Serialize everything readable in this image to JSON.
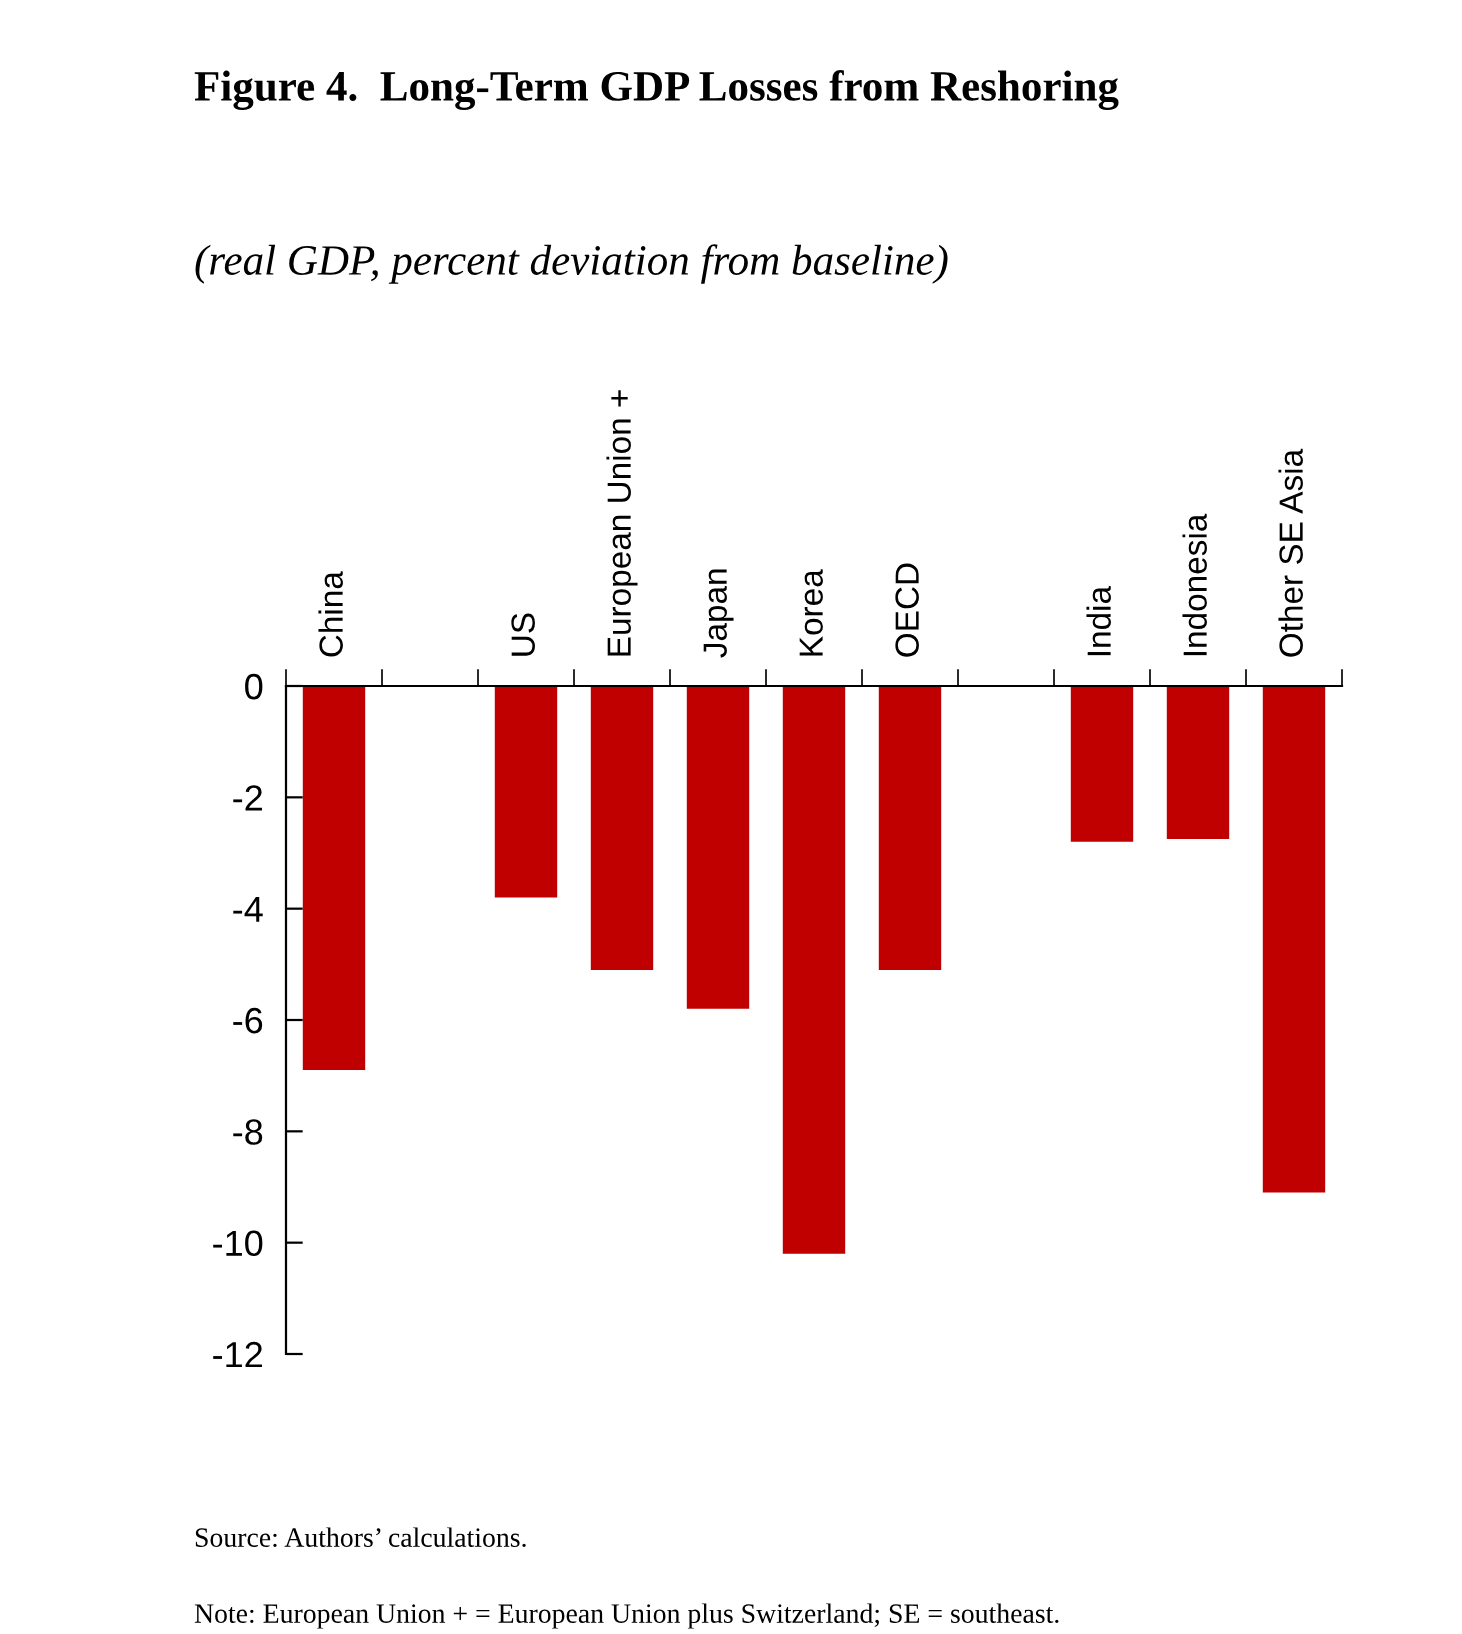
{
  "chart_data": {
    "type": "bar",
    "title": "Figure 4.  Long-Term GDP Losses from Reshoring",
    "subtitle": "(real GDP, percent deviation from baseline)",
    "categories": [
      "China",
      null,
      "US",
      "European Union +",
      "Japan",
      "Korea",
      "OECD",
      null,
      "India",
      "Indonesia",
      "Other SE Asia"
    ],
    "values": [
      -6.9,
      null,
      -3.8,
      -5.1,
      -5.8,
      -10.2,
      -5.1,
      null,
      -2.8,
      -2.75,
      -9.1
    ],
    "color": "#c00000",
    "ylim": [
      -12,
      0
    ],
    "yticks": [
      -12,
      -10,
      -8,
      -6,
      -4,
      -2,
      0
    ],
    "annotations": [
      "Source: Authors’ calculations.",
      "Note: European Union + = European Union plus Switzerland; SE = southeast."
    ]
  }
}
